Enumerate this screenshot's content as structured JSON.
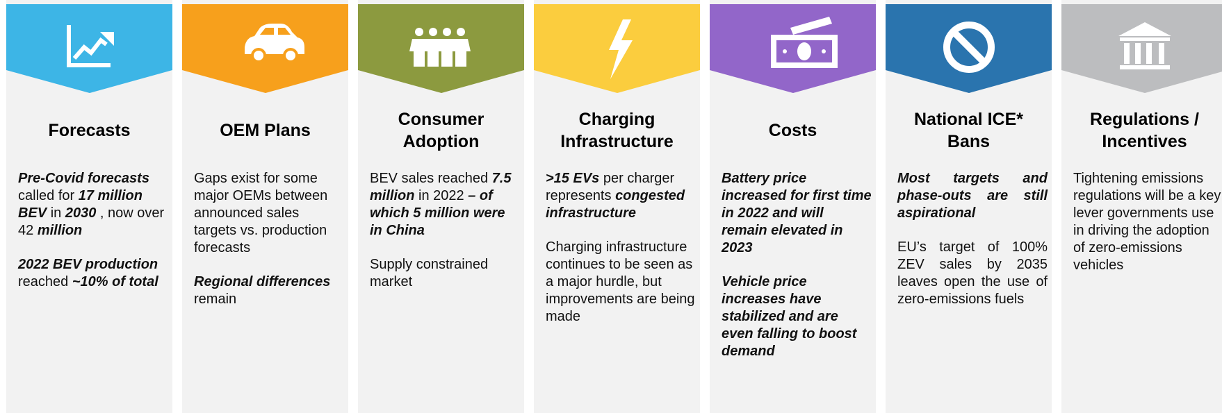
{
  "columns": [
    {
      "title": "Forecasts",
      "color": "#3db5e6",
      "paragraphs": [
        [
          {
            "text": "Pre-Covid forecasts",
            "emphasis": true
          },
          {
            "text": "called for"
          },
          {
            "text": "17 million BEV",
            "emphasis": true
          },
          {
            "text": "in"
          },
          {
            "text": "2030",
            "emphasis": true
          },
          {
            "text": ", now over 42"
          },
          {
            "text": "million",
            "emphasis": true
          }
        ],
        [
          {
            "text": "2022 BEV production",
            "emphasis": true
          },
          {
            "text": "reached"
          },
          {
            "text": "~10% of total",
            "emphasis": true
          }
        ]
      ]
    },
    {
      "title": "OEM Plans",
      "color": "#f7a01c",
      "paragraphs": [
        [
          {
            "text": "Gaps exist  for some major OEMs between announced sales targets vs. production forecasts"
          }
        ],
        [
          {
            "text": "Regional differences",
            "emphasis": true
          },
          {
            "text": "remain"
          }
        ]
      ]
    },
    {
      "title": "Consumer Adoption",
      "color": "#8c9a3f",
      "paragraphs": [
        [
          {
            "text": "BEV sales reached"
          },
          {
            "text": "7.5 million",
            "emphasis": true
          },
          {
            "text": "in 2022"
          },
          {
            "text": "– of which 5 million were in China",
            "emphasis": true
          }
        ],
        [
          {
            "text": "Supply constrained market"
          }
        ]
      ]
    },
    {
      "title": "Charging Infrastructure",
      "color": "#fbcd3e",
      "paragraphs": [
        [
          {
            "text": ">15 EVs",
            "emphasis": true
          },
          {
            "text": "per charger represents"
          },
          {
            "text": "congested infrastructure",
            "emphasis": true
          }
        ],
        [
          {
            "text": "Charging infrastructure continues to be seen as a major hurdle, but improvements are being made"
          }
        ]
      ]
    },
    {
      "title": "Costs",
      "color": "#9266c9",
      "paragraphs": [
        [
          {
            "text": "Battery price increased for first time in 2022 and will remain elevated in 2023",
            "emphasis": true
          }
        ],
        [
          {
            "text": "Vehicle price increases have stabilized and are even falling to boost demand",
            "emphasis": true
          }
        ]
      ]
    },
    {
      "title": "National ICE* Bans",
      "color": "#2a74ae",
      "paragraphs": [
        [
          {
            "text": "Most targets and phase-outs are still aspirational",
            "emphasis": true
          }
        ],
        [
          {
            "text": "EU’s target of 100% ZEV sales by 2035 leaves open the use of zero-emissions fuels"
          }
        ]
      ]
    },
    {
      "title": "Regulations / Incentives",
      "color": "#bcbdbf",
      "paragraphs": [
        [
          {
            "text": "Tightening emissions regulations will be a key lever governments use in driving the adoption of zero-emissions vehicles"
          }
        ]
      ]
    }
  ]
}
